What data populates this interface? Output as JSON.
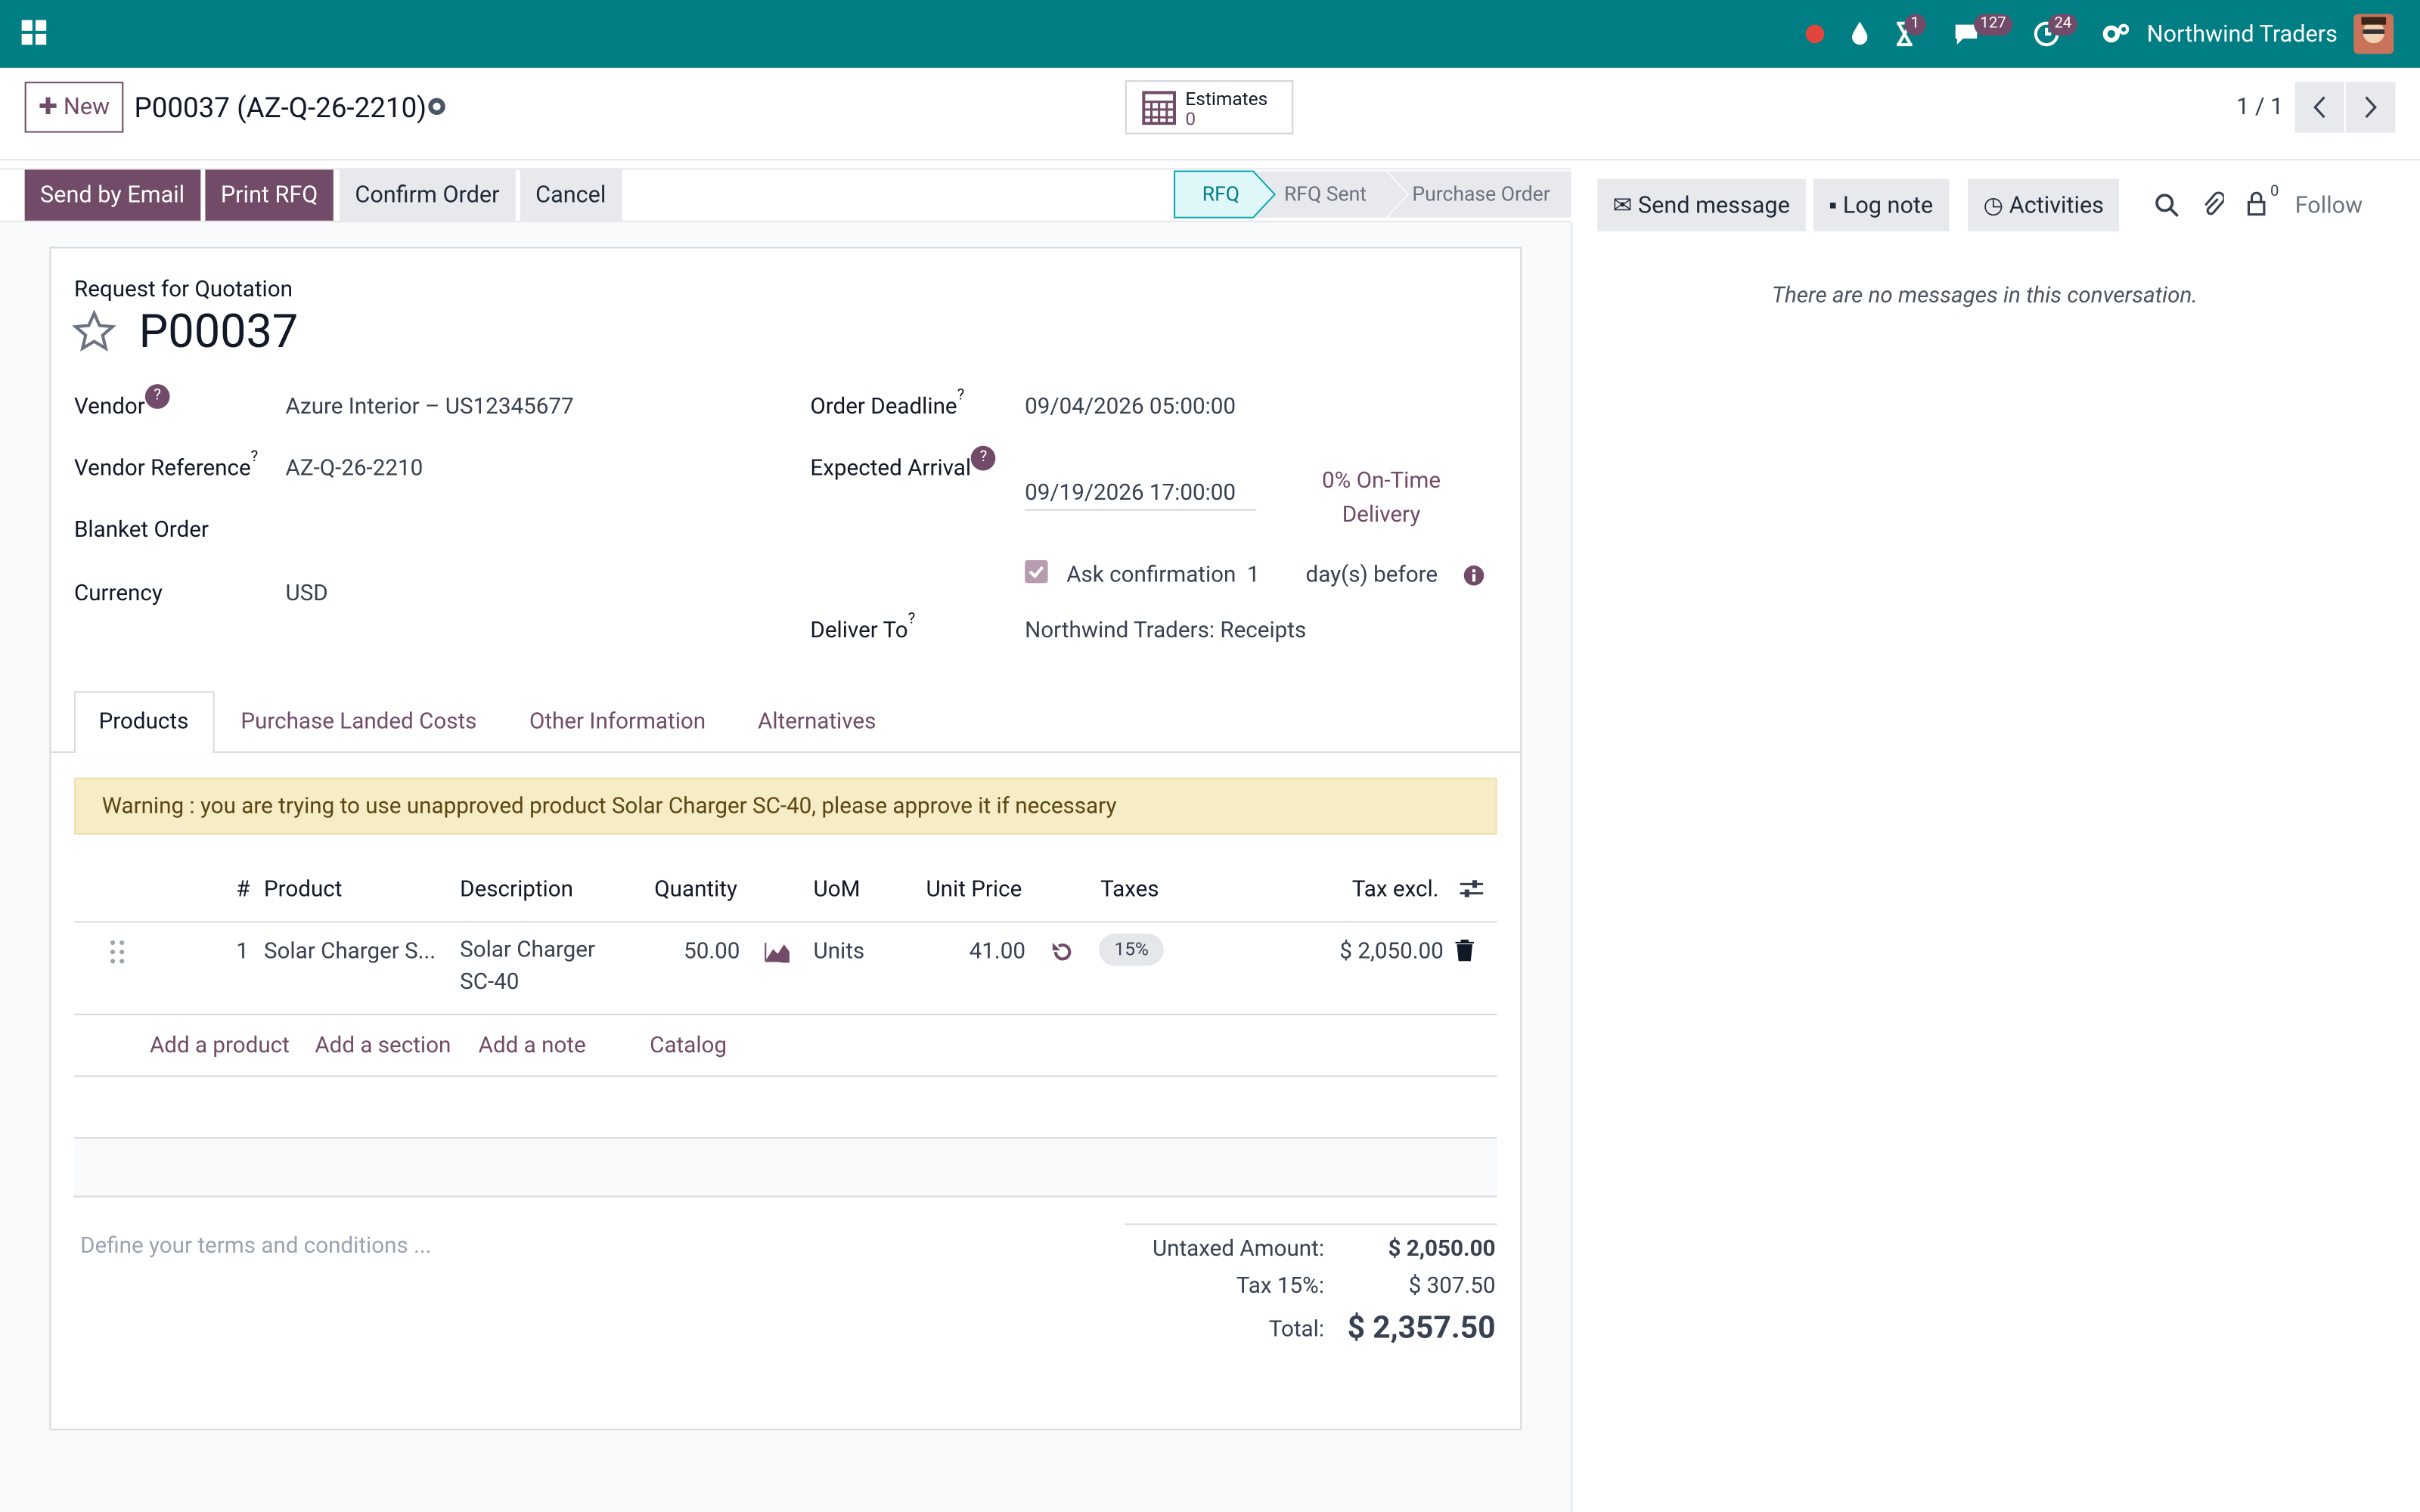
{
  "navbar": {
    "badges": {
      "activity": 1,
      "messages": 127,
      "timer": 24
    },
    "company": "Northwind Traders"
  },
  "control": {
    "new": "New",
    "breadcrumb": "P00037 (AZ-Q-26-2210)",
    "smart_button": {
      "label": "Estimates",
      "count": 0
    },
    "pager": "1 / 1"
  },
  "actions": [
    "Send by Email",
    "Print RFQ",
    "Confirm Order",
    "Cancel"
  ],
  "statusbar": [
    "RFQ",
    "RFQ Sent",
    "Purchase Order"
  ],
  "chatter": {
    "buttons": [
      "Send message",
      "Log note",
      "Activities"
    ],
    "follower_count": 0,
    "follow": "Follow",
    "empty": "There are no messages in this conversation."
  },
  "form": {
    "subtitle": "Request for Quotation",
    "name": "P00037",
    "help_marker": "?",
    "left_fields": [
      {
        "label": "Vendor",
        "value": "Azure Interior – US12345677"
      },
      {
        "label": "Vendor Reference",
        "value": "AZ-Q-26-2210"
      },
      {
        "label": "Blanket Order"
      },
      {
        "label": "Currency",
        "value": "USD"
      }
    ],
    "right_fields": [
      {
        "label": "Order Deadline",
        "value": "09/04/2026 05:00:00"
      },
      {
        "label": "Expected Arrival",
        "value": "09/19/2026 17:00:00"
      },
      {
        "label": "Deliver To",
        "value": "Northwind Traders: Receipts"
      }
    ],
    "on_time": "0% On-Time Delivery",
    "ask_confirmation": {
      "label": "Ask confirmation",
      "days": 1,
      "suffix": "day(s) before"
    },
    "tabs": [
      "Products",
      "Purchase Landed Costs",
      "Other Information",
      "Alternatives"
    ],
    "warning": "Warning : you are trying to use unapproved product Solar Charger SC-40, please approve it if necessary",
    "table": {
      "headers": [
        "#",
        "Product",
        "Description",
        "Quantity",
        "UoM",
        "Unit Price",
        "Taxes",
        "Tax excl."
      ],
      "rows": [
        [
          1,
          "Solar Charger S...",
          "Solar Charger SC-40",
          "50.00",
          "Units",
          "41.00",
          "15%",
          "$ 2,050.00"
        ]
      ],
      "add_links": [
        "Add a product",
        "Add a section",
        "Add a note",
        "Catalog"
      ]
    },
    "terms_placeholder": "Define your terms and conditions ...",
    "totals": [
      {
        "label": "Untaxed Amount:",
        "value": "$ 2,050.00"
      },
      {
        "label": "Tax 15%:",
        "value": "$ 307.50"
      },
      {
        "label": "Total:",
        "value": "$ 2,357.50"
      }
    ]
  }
}
